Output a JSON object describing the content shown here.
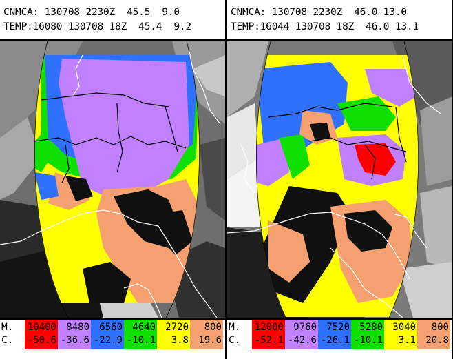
{
  "panels": [
    {
      "line1": "CNMCA: 130708 2230Z  45.5  9.0",
      "line2": "TEMP:16080 130708 18Z  45.4  9.2",
      "legend": {
        "label_m": "M.",
        "label_c": "C.",
        "bins": [
          {
            "m": "10400",
            "c": "-50.6",
            "color": "#ff0000",
            "text": "#000000"
          },
          {
            "m": "8480",
            "c": "-36.6",
            "color": "#c080ff",
            "text": "#000000"
          },
          {
            "m": "6560",
            "c": "-22.9",
            "color": "#3070ff",
            "text": "#000000"
          },
          {
            "m": "4640",
            "c": "-10.1",
            "color": "#10e000",
            "text": "#000000"
          },
          {
            "m": "2720",
            "c": "3.8",
            "color": "#ffff00",
            "text": "#000000"
          },
          {
            "m": "800",
            "c": "19.6",
            "color": "#f4a070",
            "text": "#000000"
          }
        ]
      }
    },
    {
      "line1": "CNMCA: 130708 2230Z  46.0 13.0",
      "line2": "TEMP:16044 130708 18Z  46.0 13.1",
      "legend": {
        "label_m": "M.",
        "label_c": "C.",
        "bins": [
          {
            "m": "12000",
            "c": "-52.1",
            "color": "#ff0000",
            "text": "#000000"
          },
          {
            "m": "9760",
            "c": "-42.6",
            "color": "#c080ff",
            "text": "#000000"
          },
          {
            "m": "7520",
            "c": "-26.1",
            "color": "#3070ff",
            "text": "#000000"
          },
          {
            "m": "5280",
            "c": "-10.1",
            "color": "#10e000",
            "text": "#000000"
          },
          {
            "m": "3040",
            "c": "3.1",
            "color": "#ffff00",
            "text": "#000000"
          },
          {
            "m": "800",
            "c": "20.8",
            "color": "#f4a070",
            "text": "#000000"
          }
        ]
      }
    }
  ]
}
